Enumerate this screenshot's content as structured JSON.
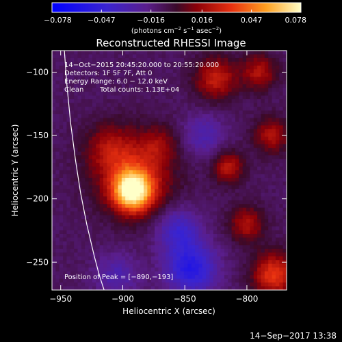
{
  "chart_data": {
    "type": "heatmap",
    "title": "Reconstructed RHESSI Image",
    "xlabel": "Heliocentric X (arcsec)",
    "ylabel": "Heliocentric Y (arcsec)",
    "xlim": [
      -957,
      -768
    ],
    "ylim": [
      -272,
      -83
    ],
    "xticks": [
      -950,
      -900,
      -850,
      -800
    ],
    "xtick_labels": [
      "−950",
      "−900",
      "−850",
      "−800"
    ],
    "yticks": [
      -100,
      -150,
      -200,
      -250
    ],
    "ytick_labels": [
      "−100",
      "−150",
      "−200",
      "−250"
    ],
    "colorbar": {
      "min": -0.078,
      "max": 0.078,
      "ticks": [
        -0.078,
        -0.047,
        -0.016,
        0.016,
        0.047,
        0.078
      ],
      "tick_labels": [
        "−0.078",
        "−0.047",
        "−0.016",
        "0.016",
        "0.047",
        "0.078"
      ],
      "units_prefix": "(photons cm",
      "units_exp1": "−2",
      "units_mid": " s",
      "units_exp2": "−1",
      "units_mid2": " asec",
      "units_exp3": "−2",
      "units_suffix": ")"
    },
    "annotations": {
      "time_range": "14−Oct−2015 20:45:20.000 to 20:55:20.000",
      "detectors": "Detectors: 1F 5F 7F, Att 0",
      "energy_range": "Energy Range: 6.0 − 12.0 keV",
      "clean_label": "Clean",
      "total_counts": "Total counts: 1.13E+04",
      "peak": "Position of Peak = [−890,−193]"
    },
    "peak_position": [
      -890,
      -193
    ],
    "limb_curve_x": [
      -947,
      -945,
      -942,
      -938,
      -934,
      -929,
      -923,
      -919,
      -915
    ],
    "limb_curve_y": [
      -83,
      -110,
      -140,
      -170,
      -195,
      -220,
      -245,
      -260,
      -272
    ],
    "heatmap_grid": {
      "nx": 64,
      "ny": 64,
      "sources": [
        {
          "x": -892,
          "y": -194,
          "amp": 0.078,
          "sigma": 11
        },
        {
          "x": -890,
          "y": -180,
          "amp": 0.035,
          "sigma": 22
        },
        {
          "x": -912,
          "y": -160,
          "amp": 0.02,
          "sigma": 14
        },
        {
          "x": -870,
          "y": -157,
          "amp": 0.016,
          "sigma": 10
        },
        {
          "x": -835,
          "y": -150,
          "amp": -0.02,
          "sigma": 12
        },
        {
          "x": -845,
          "y": -255,
          "amp": -0.045,
          "sigma": 14
        },
        {
          "x": -905,
          "y": -260,
          "amp": -0.02,
          "sigma": 12
        },
        {
          "x": -855,
          "y": -225,
          "amp": -0.03,
          "sigma": 12
        },
        {
          "x": -825,
          "y": -105,
          "amp": 0.035,
          "sigma": 12
        },
        {
          "x": -790,
          "y": -100,
          "amp": 0.03,
          "sigma": 10
        },
        {
          "x": -815,
          "y": -175,
          "amp": 0.032,
          "sigma": 9
        },
        {
          "x": -800,
          "y": -220,
          "amp": 0.03,
          "sigma": 10
        },
        {
          "x": -778,
          "y": -260,
          "amp": 0.045,
          "sigma": 12
        },
        {
          "x": -780,
          "y": -150,
          "amp": 0.03,
          "sigma": 10
        }
      ],
      "background": -0.01
    }
  },
  "footer": {
    "date": "14−Sep−2017 13:38"
  }
}
